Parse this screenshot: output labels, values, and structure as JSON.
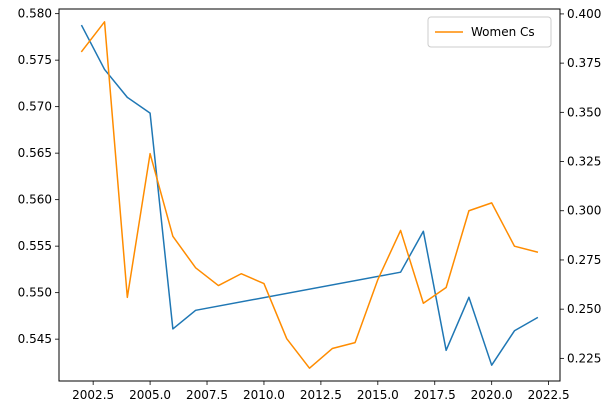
{
  "chart_data": {
    "type": "line",
    "title": "",
    "xlabel": "",
    "ylabel": "",
    "y2label": "",
    "xlim": [
      2001.0,
      2023.0
    ],
    "ylim_left": [
      0.5405,
      0.5805
    ],
    "ylim_right": [
      0.2135,
      0.4025
    ],
    "x_ticks": [
      2002.5,
      2005.0,
      2007.5,
      2010.0,
      2012.5,
      2015.0,
      2017.5,
      2020.0,
      2022.5
    ],
    "x_tick_labels": [
      "2002.5",
      "2005.0",
      "2007.5",
      "2010.0",
      "2012.5",
      "2015.0",
      "2017.5",
      "2020.0",
      "2022.5"
    ],
    "y_left_ticks": [
      0.545,
      0.55,
      0.555,
      0.56,
      0.565,
      0.57,
      0.575,
      0.58
    ],
    "y_left_tick_labels": [
      "0.545",
      "0.550",
      "0.555",
      "0.560",
      "0.565",
      "0.570",
      "0.575",
      "0.580"
    ],
    "y_right_ticks": [
      0.225,
      0.25,
      0.275,
      0.3,
      0.325,
      0.35,
      0.375,
      0.4
    ],
    "y_right_tick_labels": [
      "0.225",
      "0.250",
      "0.275",
      "0.300",
      "0.325",
      "0.350",
      "0.375",
      "0.400"
    ],
    "grid": false,
    "legend": {
      "placement": "upper-right",
      "entries": [
        "Women Cs"
      ]
    },
    "series": [
      {
        "axis": "left",
        "color": "#1f77b4",
        "x": [
          2002,
          2003,
          2004,
          2005,
          2006,
          2007,
          2016,
          2017,
          2018,
          2019,
          2020,
          2021,
          2022
        ],
        "values": [
          0.5787,
          0.574,
          0.571,
          0.5693,
          0.5461,
          0.5481,
          0.5522,
          0.5566,
          0.5438,
          0.5495,
          0.5422,
          0.5459,
          0.5473
        ]
      },
      {
        "name": "Women Cs",
        "axis": "right",
        "color": "#ff8c00",
        "x": [
          2002,
          2003,
          2004,
          2005,
          2006,
          2007,
          2008,
          2009,
          2010,
          2011,
          2012,
          2013,
          2014,
          2015,
          2016,
          2017,
          2018,
          2019,
          2020,
          2021,
          2022
        ],
        "values": [
          0.381,
          0.396,
          0.256,
          0.329,
          0.287,
          0.271,
          0.262,
          0.268,
          0.263,
          0.235,
          0.22,
          0.23,
          0.233,
          0.265,
          0.29,
          0.253,
          0.261,
          0.3,
          0.304,
          0.282,
          0.279
        ]
      }
    ]
  }
}
